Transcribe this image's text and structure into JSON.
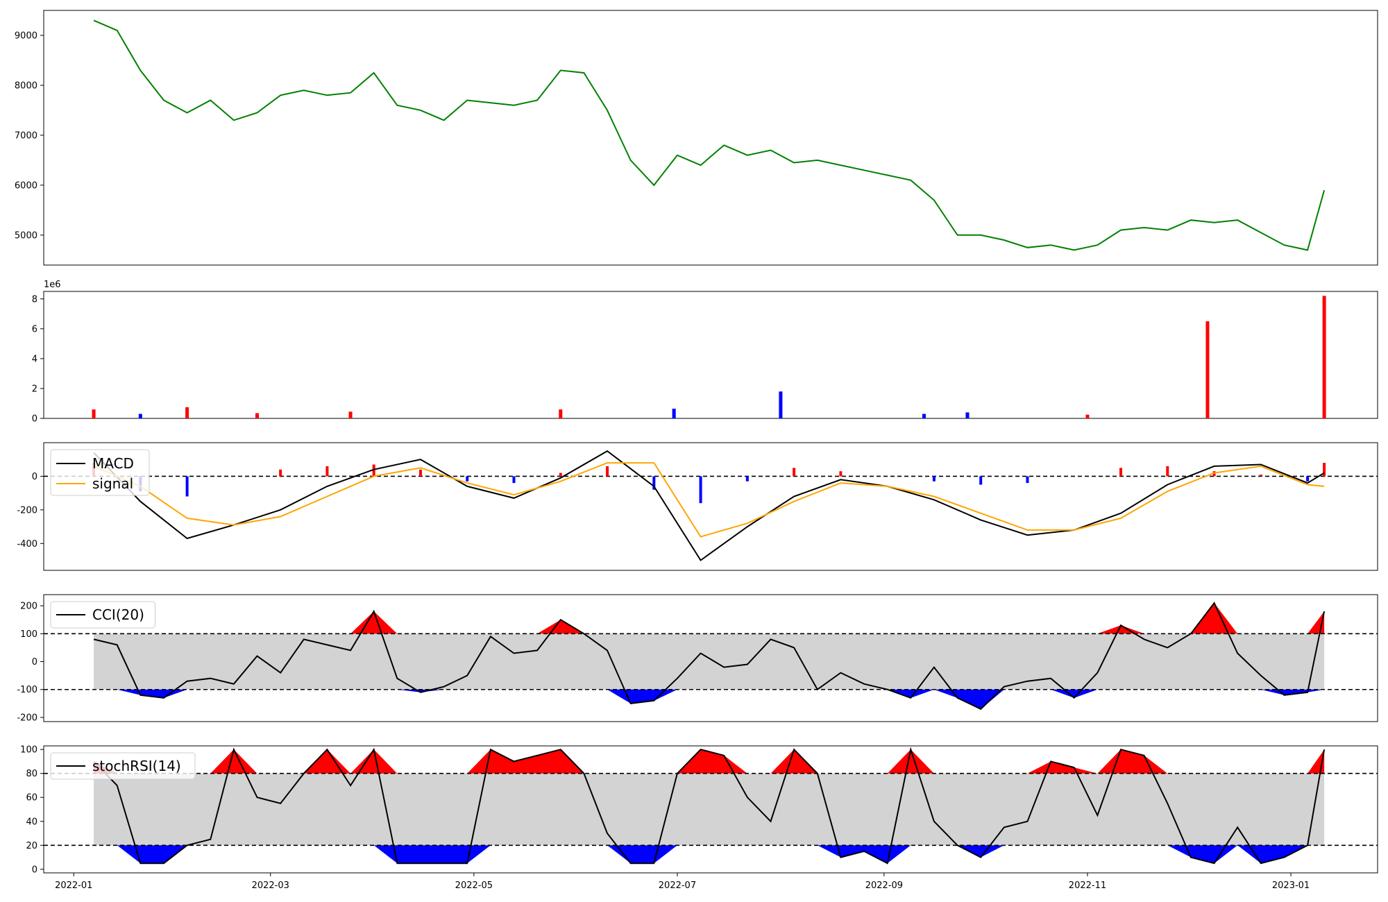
{
  "chart_data": [
    {
      "type": "line",
      "panel": "price",
      "color": "#008000",
      "ylim": [
        4400,
        9500
      ],
      "yticks": [
        "5000",
        "6000",
        "7000",
        "8000",
        "9000"
      ],
      "x": [
        "2022-01-07",
        "2022-01-14",
        "2022-01-21",
        "2022-01-28",
        "2022-02-04",
        "2022-02-11",
        "2022-02-18",
        "2022-02-25",
        "2022-03-04",
        "2022-03-11",
        "2022-03-18",
        "2022-03-25",
        "2022-04-01",
        "2022-04-08",
        "2022-04-15",
        "2022-04-22",
        "2022-04-29",
        "2022-05-06",
        "2022-05-13",
        "2022-05-20",
        "2022-05-27",
        "2022-06-03",
        "2022-06-10",
        "2022-06-17",
        "2022-06-24",
        "2022-07-01",
        "2022-07-08",
        "2022-07-15",
        "2022-07-22",
        "2022-07-29",
        "2022-08-05",
        "2022-08-12",
        "2022-08-19",
        "2022-08-26",
        "2022-09-02",
        "2022-09-09",
        "2022-09-16",
        "2022-09-23",
        "2022-09-30",
        "2022-10-07",
        "2022-10-14",
        "2022-10-21",
        "2022-10-28",
        "2022-11-04",
        "2022-11-11",
        "2022-11-18",
        "2022-11-25",
        "2022-12-02",
        "2022-12-09",
        "2022-12-16",
        "2022-12-23",
        "2022-12-30",
        "2023-01-06",
        "2023-01-11"
      ],
      "values": [
        9300,
        9100,
        8300,
        7700,
        7450,
        7700,
        7300,
        7450,
        7800,
        7900,
        7800,
        7850,
        8250,
        7600,
        7500,
        7300,
        7700,
        7650,
        7600,
        7700,
        8300,
        8250,
        7500,
        6500,
        6000,
        6600,
        6400,
        6800,
        6600,
        6700,
        6450,
        6500,
        6400,
        6300,
        6200,
        6100,
        5700,
        5000,
        5000,
        4900,
        4750,
        4800,
        4700,
        4800,
        5100,
        5150,
        5100,
        5300,
        5250,
        5300,
        5050,
        4800,
        4700,
        5900
      ]
    },
    {
      "type": "bar",
      "panel": "volume",
      "multiplier_label": "1e6",
      "ylim": [
        0,
        8.5
      ],
      "yticks": [
        "0",
        "2",
        "4",
        "6",
        "8"
      ],
      "x": [
        "2022-01-07",
        "2022-01-21",
        "2022-02-04",
        "2022-02-25",
        "2022-03-25",
        "2022-05-27",
        "2022-06-30",
        "2022-08-01",
        "2022-09-13",
        "2022-09-26",
        "2022-11-01",
        "2022-12-07",
        "2023-01-11"
      ],
      "values": [
        0.6,
        0.3,
        0.75,
        0.35,
        0.45,
        0.6,
        0.65,
        1.8,
        0.3,
        0.4,
        0.25,
        6.5,
        8.2
      ],
      "colors": [
        "red",
        "blue",
        "red",
        "red",
        "red",
        "red",
        "blue",
        "blue",
        "blue",
        "blue",
        "red",
        "red",
        "red"
      ]
    },
    {
      "type": "line",
      "panel": "macd",
      "ylim": [
        -560,
        200
      ],
      "yticks": [
        "-400",
        "-200",
        "0"
      ],
      "x": [
        "2022-01-07",
        "2022-01-21",
        "2022-02-04",
        "2022-02-18",
        "2022-03-04",
        "2022-03-18",
        "2022-04-01",
        "2022-04-15",
        "2022-04-29",
        "2022-05-13",
        "2022-05-27",
        "2022-06-10",
        "2022-06-24",
        "2022-07-08",
        "2022-07-22",
        "2022-08-05",
        "2022-08-19",
        "2022-09-02",
        "2022-09-16",
        "2022-09-30",
        "2022-10-14",
        "2022-10-28",
        "2022-11-11",
        "2022-11-25",
        "2022-12-09",
        "2022-12-23",
        "2023-01-06",
        "2023-01-11"
      ],
      "series": [
        {
          "name": "MACD",
          "color": "#000000",
          "values": [
            140,
            -150,
            -370,
            -290,
            -200,
            -60,
            40,
            100,
            -60,
            -130,
            -10,
            150,
            -60,
            -500,
            -300,
            -120,
            -20,
            -60,
            -140,
            -260,
            -350,
            -320,
            -220,
            -50,
            60,
            70,
            -40,
            20
          ]
        },
        {
          "name": "signal",
          "color": "#ffa500",
          "values": [
            60,
            -60,
            -250,
            -290,
            -240,
            -120,
            0,
            50,
            -40,
            -110,
            -30,
            80,
            80,
            -360,
            -280,
            -150,
            -40,
            -60,
            -120,
            -220,
            -320,
            -320,
            -250,
            -90,
            20,
            60,
            -50,
            -60
          ]
        }
      ],
      "histogram": [
        80,
        -90,
        -120,
        0,
        40,
        60,
        70,
        40,
        -30,
        -40,
        20,
        60,
        -80,
        -160,
        -30,
        50,
        30,
        0,
        -30,
        -50,
        -40,
        0,
        50,
        60,
        30,
        10,
        -30,
        80
      ]
    },
    {
      "type": "line",
      "panel": "cci",
      "ylim": [
        -215,
        240
      ],
      "yticks": [
        "-200",
        "-100",
        "0",
        "100",
        "200"
      ],
      "thresholds": [
        -100,
        100
      ],
      "x": [
        "2022-01-07",
        "2022-01-14",
        "2022-01-21",
        "2022-01-28",
        "2022-02-04",
        "2022-02-11",
        "2022-02-18",
        "2022-02-25",
        "2022-03-04",
        "2022-03-11",
        "2022-03-18",
        "2022-03-25",
        "2022-04-01",
        "2022-04-08",
        "2022-04-15",
        "2022-04-22",
        "2022-04-29",
        "2022-05-06",
        "2022-05-13",
        "2022-05-20",
        "2022-05-27",
        "2022-06-03",
        "2022-06-10",
        "2022-06-17",
        "2022-06-24",
        "2022-07-01",
        "2022-07-08",
        "2022-07-15",
        "2022-07-22",
        "2022-07-29",
        "2022-08-05",
        "2022-08-12",
        "2022-08-19",
        "2022-08-26",
        "2022-09-02",
        "2022-09-09",
        "2022-09-16",
        "2022-09-23",
        "2022-09-30",
        "2022-10-07",
        "2022-10-14",
        "2022-10-21",
        "2022-10-28",
        "2022-11-04",
        "2022-11-11",
        "2022-11-18",
        "2022-11-25",
        "2022-12-02",
        "2022-12-09",
        "2022-12-16",
        "2022-12-23",
        "2022-12-30",
        "2023-01-06",
        "2023-01-11"
      ],
      "series": [
        {
          "name": "CCI(20)",
          "color": "#000000",
          "values": [
            80,
            60,
            -120,
            -130,
            -70,
            -60,
            -80,
            20,
            -40,
            80,
            60,
            40,
            180,
            -60,
            -110,
            -90,
            -50,
            90,
            30,
            40,
            150,
            100,
            40,
            -150,
            -140,
            -60,
            30,
            -20,
            -10,
            80,
            50,
            -100,
            -40,
            -80,
            -100,
            -130,
            -20,
            -130,
            -170,
            -90,
            -70,
            -60,
            -130,
            -40,
            130,
            80,
            50,
            100,
            210,
            30,
            -50,
            -120,
            -110,
            180
          ]
        }
      ]
    },
    {
      "type": "line",
      "panel": "stochrsi",
      "ylim": [
        -3,
        103
      ],
      "yticks": [
        "0",
        "20",
        "40",
        "60",
        "80",
        "100"
      ],
      "thresholds": [
        20,
        80
      ],
      "x": [
        "2022-01-07",
        "2022-01-14",
        "2022-01-21",
        "2022-01-28",
        "2022-02-04",
        "2022-02-11",
        "2022-02-18",
        "2022-02-25",
        "2022-03-04",
        "2022-03-11",
        "2022-03-18",
        "2022-03-25",
        "2022-04-01",
        "2022-04-08",
        "2022-04-15",
        "2022-04-22",
        "2022-04-29",
        "2022-05-06",
        "2022-05-13",
        "2022-05-20",
        "2022-05-27",
        "2022-06-03",
        "2022-06-10",
        "2022-06-17",
        "2022-06-24",
        "2022-07-01",
        "2022-07-08",
        "2022-07-15",
        "2022-07-22",
        "2022-07-29",
        "2022-08-05",
        "2022-08-12",
        "2022-08-19",
        "2022-08-26",
        "2022-09-02",
        "2022-09-09",
        "2022-09-16",
        "2022-09-23",
        "2022-09-30",
        "2022-10-07",
        "2022-10-14",
        "2022-10-21",
        "2022-10-28",
        "2022-11-04",
        "2022-11-11",
        "2022-11-18",
        "2022-11-25",
        "2022-12-02",
        "2022-12-09",
        "2022-12-16",
        "2022-12-23",
        "2022-12-30",
        "2023-01-06",
        "2023-01-11"
      ],
      "series": [
        {
          "name": "stochRSI(14)",
          "color": "#000000",
          "values": [
            90,
            70,
            5,
            5,
            20,
            25,
            100,
            60,
            55,
            80,
            100,
            70,
            100,
            5,
            5,
            5,
            5,
            100,
            90,
            95,
            100,
            80,
            30,
            5,
            5,
            80,
            100,
            95,
            60,
            40,
            100,
            80,
            10,
            15,
            5,
            100,
            40,
            20,
            10,
            35,
            40,
            90,
            85,
            45,
            100,
            95,
            55,
            10,
            5,
            35,
            5,
            10,
            20,
            100
          ]
        }
      ]
    }
  ],
  "x_axis": {
    "ticks": [
      "2022-01",
      "2022-03",
      "2022-05",
      "2022-07",
      "2022-09",
      "2022-11",
      "2023-01"
    ]
  }
}
